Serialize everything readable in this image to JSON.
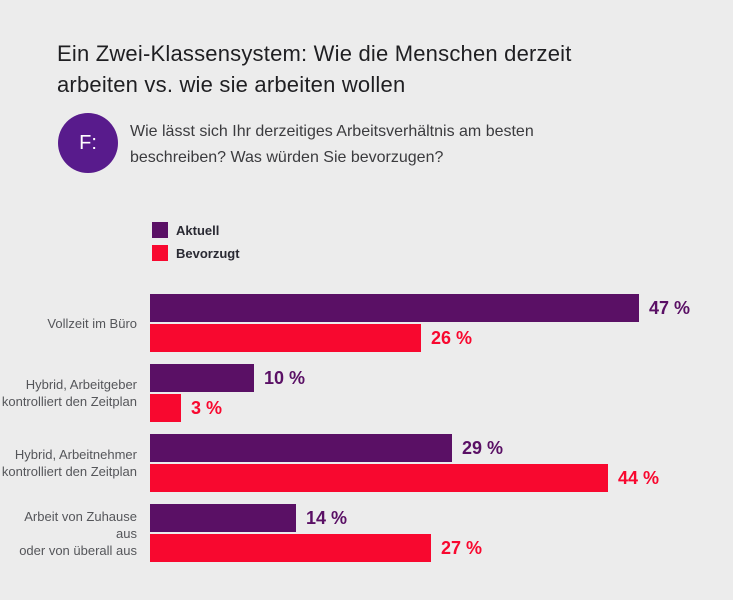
{
  "title": "Ein Zwei-Klassensystem: Wie die Menschen derzeit\narbeiten vs. wie sie arbeiten wollen",
  "question": {
    "badge": "F:",
    "text": "Wie lässt sich Ihr derzeitiges Arbeitsverhältnis am besten\nbeschreiben? Was würden Sie bevorzugen?"
  },
  "legend": {
    "position": "top-left",
    "items": [
      {
        "label": "Aktuell",
        "color": "#5A1065"
      },
      {
        "label": "Bevorzugt",
        "color": "#F8082F"
      }
    ]
  },
  "colors": {
    "background": "#ECECEC",
    "badge_purple": "#581B8C",
    "bar_purple": "#5A1065",
    "bar_red": "#F8082F",
    "category_label": "#55565A",
    "title_text": "#1F1F22"
  },
  "chart_data": {
    "type": "bar",
    "orientation": "horizontal",
    "grid": false,
    "xlim": [
      0,
      47
    ],
    "value_suffix": " %",
    "categories": [
      "Vollzeit im Büro",
      "Hybrid, Arbeitgeber\nkontrolliert den Zeitplan",
      "Hybrid, Arbeitnehmer\nkontrolliert den Zeitplan",
      "Arbeit von Zuhause aus\noder von überall aus"
    ],
    "series": [
      {
        "name": "Aktuell",
        "color": "#5A1065",
        "values": [
          47,
          10,
          29,
          14
        ],
        "labels": [
          "47 %",
          "10 %",
          "29 %",
          "14 %"
        ]
      },
      {
        "name": "Bevorzugt",
        "color": "#F8082F",
        "values": [
          26,
          3,
          44,
          27
        ],
        "labels": [
          "26 %",
          "3 %",
          "44 %",
          "27 %"
        ]
      }
    ]
  }
}
